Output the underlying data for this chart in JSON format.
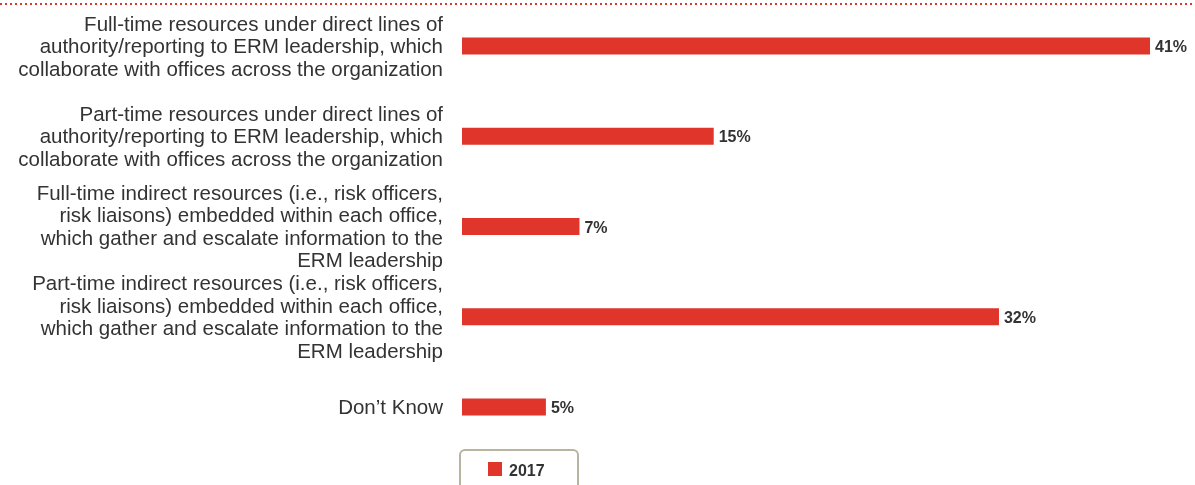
{
  "chart_data": {
    "type": "bar",
    "orientation": "horizontal",
    "categories": [
      "Full-time resources under direct lines of authority/reporting to ERM leadership, which collaborate with offices across the organization",
      "Part-time resources under direct lines of authority/reporting to ERM leadership, which collaborate with offices across the organization",
      "Full-time indirect resources (i.e., risk officers, risk liaisons) embedded within each office, which gather and escalate information to the ERM leadership",
      "Part-time indirect resources (i.e., risk officers, risk liaisons) embedded within each office, which gather and escalate information to the ERM leadership",
      "Don’t Know"
    ],
    "series": [
      {
        "name": "2017",
        "color": "#e0352b",
        "values": [
          41,
          15,
          7,
          32,
          5
        ],
        "value_labels": [
          "41%",
          "15%",
          "7%",
          "32%",
          "5%"
        ]
      }
    ],
    "legend": "bottom"
  }
}
